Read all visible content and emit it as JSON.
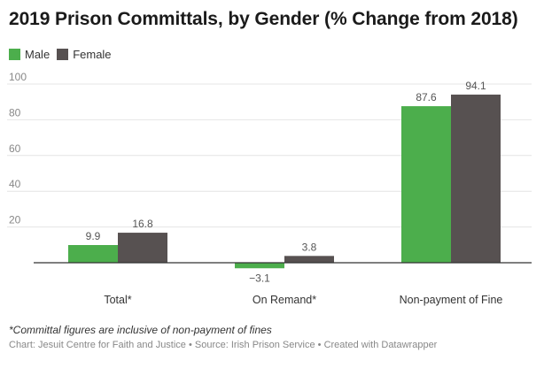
{
  "title": "2019 Prison Committals, by Gender (% Change from 2018)",
  "note": "*Committal figures are inclusive of non-payment of fines",
  "credit": "Chart: Jesuit Centre for Faith and Justice • Source: Irish Prison Service • Created with Datawrapper",
  "chart_data": {
    "type": "bar",
    "categories": [
      "Total*",
      "On Remand*",
      "Non-payment of Fine"
    ],
    "series": [
      {
        "name": "Male",
        "color": "#4cae4c",
        "values": [
          9.9,
          -3.1,
          87.6
        ],
        "labels": [
          "9.9",
          "−3.1",
          "87.6"
        ]
      },
      {
        "name": "Female",
        "color": "#575151",
        "values": [
          16.8,
          3.8,
          94.1
        ],
        "labels": [
          "16.8",
          "3.8",
          "94.1"
        ]
      }
    ],
    "yticks": [
      20,
      40,
      60,
      80,
      100
    ],
    "ylim": [
      -3.1,
      100
    ],
    "grid": true,
    "legend": "top-left"
  }
}
